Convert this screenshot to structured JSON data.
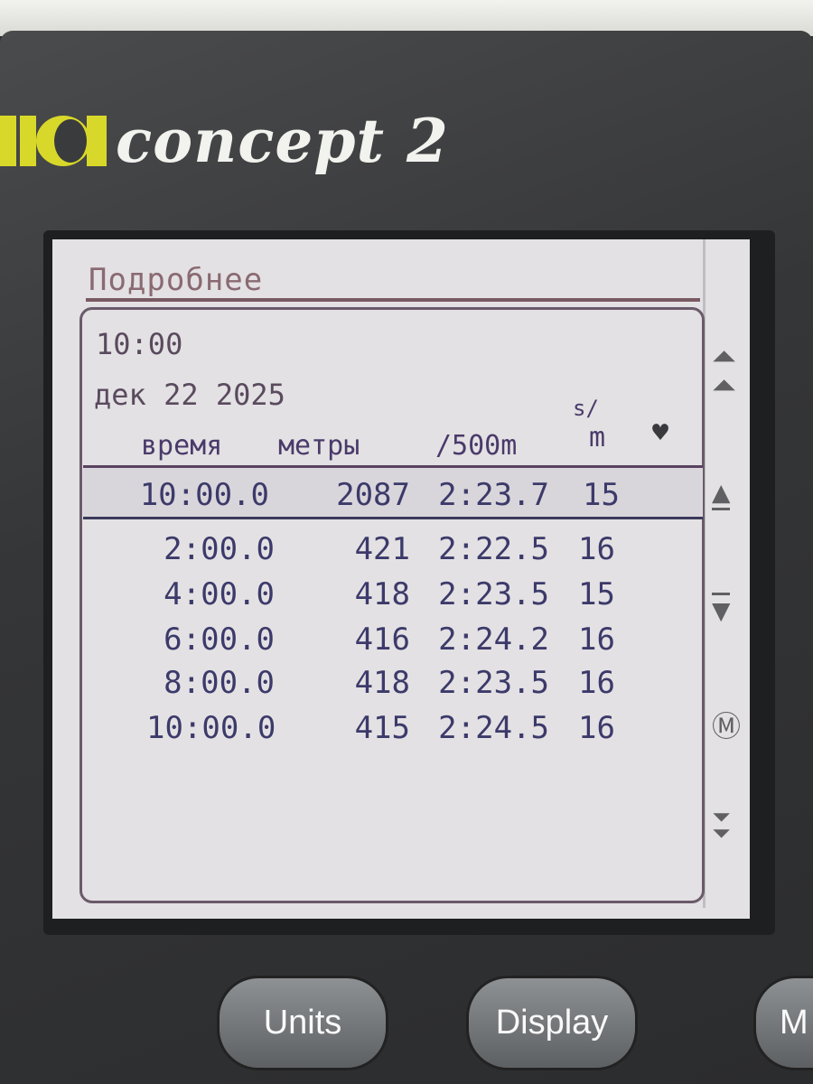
{
  "brand": {
    "name": "concept 2",
    "accent_color": "#d8d82a"
  },
  "screen": {
    "title": "Подробнее",
    "workout_duration": "10:00",
    "date": "дек 22 2025",
    "columns": {
      "time": "время",
      "meters": "метры",
      "pace": "/500m",
      "spm_top": "s/",
      "spm_bottom": "m",
      "heart_icon": "heart-icon"
    },
    "summary": {
      "time": "10:00.0",
      "meters": "2087",
      "pace": "2:23.7",
      "spm": "15"
    },
    "splits": [
      {
        "time": "2:00.0",
        "meters": "421",
        "pace": "2:22.5",
        "spm": "16"
      },
      {
        "time": "4:00.0",
        "meters": "418",
        "pace": "2:23.5",
        "spm": "15"
      },
      {
        "time": "6:00.0",
        "meters": "416",
        "pace": "2:24.2",
        "spm": "16"
      },
      {
        "time": "8:00.0",
        "meters": "418",
        "pace": "2:23.5",
        "spm": "16"
      },
      {
        "time": "10:00.0",
        "meters": "415",
        "pace": "2:24.5",
        "spm": "16"
      }
    ],
    "nav_icons": [
      "page-up-icon",
      "scroll-up-icon",
      "scroll-down-icon",
      "menu-icon",
      "page-down-icon"
    ]
  },
  "buttons": {
    "units": "Units",
    "display": "Display",
    "menu_partial": "M"
  }
}
